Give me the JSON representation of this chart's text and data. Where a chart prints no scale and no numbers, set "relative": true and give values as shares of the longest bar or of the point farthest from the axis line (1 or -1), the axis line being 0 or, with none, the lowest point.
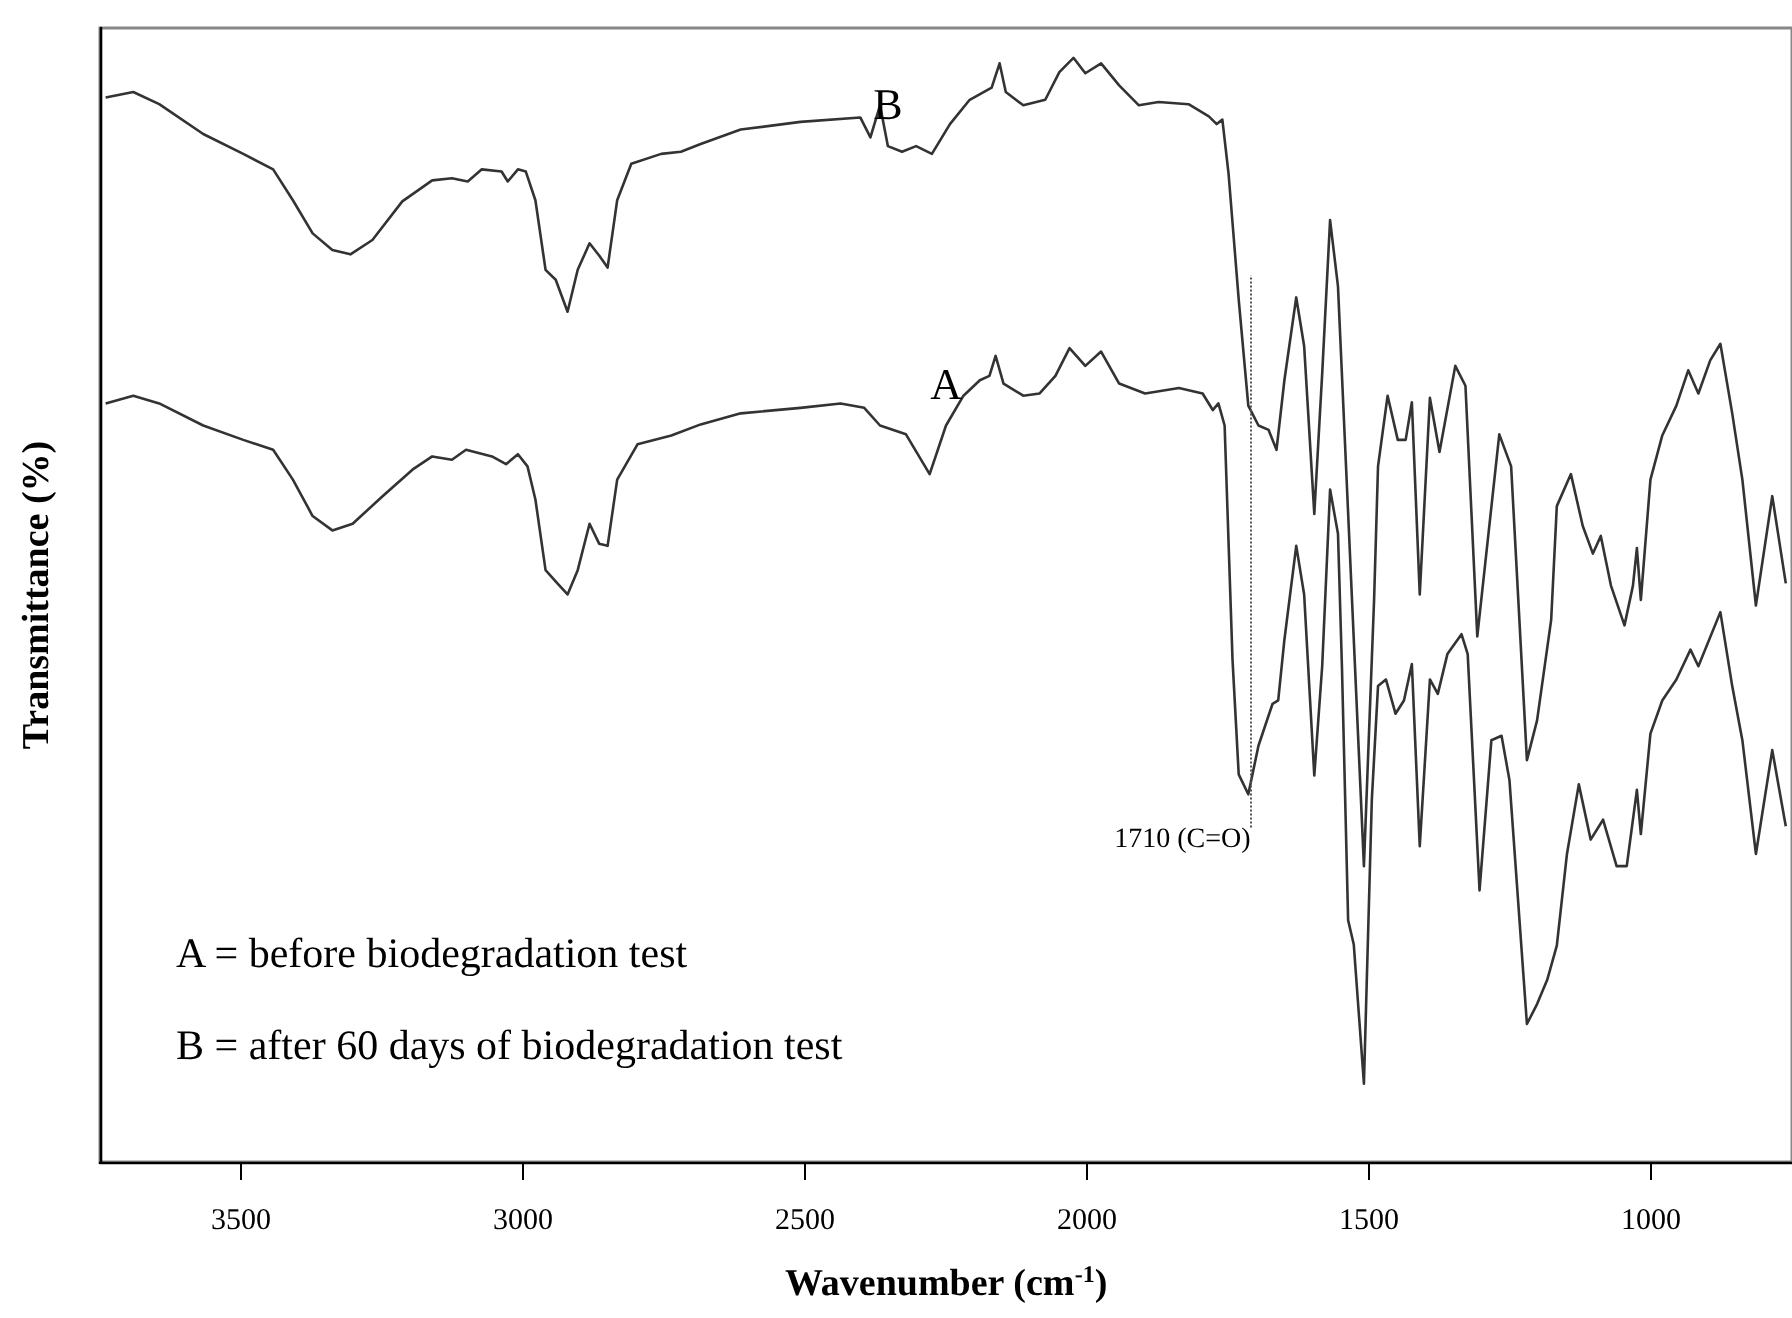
{
  "chart_data": {
    "type": "line",
    "relative": true,
    "xlabel": "Wavenumber (cm$^{-1}$)",
    "ylabel": "Transmittance (%)",
    "xlim": [
      3750,
      750
    ],
    "xticks": [
      3500,
      3000,
      2500,
      2000,
      1500,
      1000
    ],
    "tick_labels": "x",
    "annotations": [
      "A = before biodegradation test",
      "B = after 60 days of biodegradation test",
      {
        "text": "1710 (C=O)",
        "x": 1710,
        "y": 0.333
      }
    ],
    "series": [
      {
        "name": "B",
        "color": "#333333",
        "x": [
          3740,
          3691,
          3645,
          3567,
          3496,
          3443,
          3408,
          3373,
          3338,
          3306,
          3267,
          3214,
          3161,
          3126,
          3098,
          3073,
          3038,
          3027,
          3009,
          2995,
          2978,
          2960,
          2942,
          2921,
          2903,
          2882,
          2865,
          2850,
          2833,
          2808,
          2755,
          2720,
          2685,
          2614,
          2508,
          2402,
          2384,
          2367,
          2353,
          2328,
          2303,
          2275,
          2243,
          2208,
          2169,
          2155,
          2144,
          2113,
          2074,
          2049,
          2024,
          2003,
          1975,
          1943,
          1908,
          1873,
          1820,
          1784,
          1770,
          1760,
          1749,
          1731,
          1714,
          1696,
          1678,
          1664,
          1650,
          1629,
          1615,
          1597,
          1583,
          1569,
          1555,
          1509,
          1491,
          1484,
          1467,
          1449,
          1435,
          1424,
          1410,
          1392,
          1375,
          1347,
          1329,
          1308,
          1269,
          1248,
          1220,
          1202,
          1177,
          1167,
          1142,
          1121,
          1103,
          1089,
          1071,
          1047,
          1032,
          1025,
          1018,
          1001,
          980,
          955,
          934,
          916,
          895,
          877,
          856,
          838,
          814,
          785,
          761
        ],
        "values": [
          0.964,
          0.969,
          0.958,
          0.931,
          0.913,
          0.899,
          0.871,
          0.841,
          0.826,
          0.822,
          0.835,
          0.87,
          0.889,
          0.891,
          0.888,
          0.899,
          0.897,
          0.888,
          0.899,
          0.897,
          0.871,
          0.808,
          0.799,
          0.77,
          0.808,
          0.832,
          0.821,
          0.81,
          0.871,
          0.904,
          0.913,
          0.915,
          0.922,
          0.935,
          0.942,
          0.946,
          0.928,
          0.957,
          0.92,
          0.915,
          0.92,
          0.913,
          0.94,
          0.962,
          0.973,
          0.995,
          0.969,
          0.957,
          0.962,
          0.987,
          1.0,
          0.986,
          0.995,
          0.975,
          0.957,
          0.96,
          0.958,
          0.947,
          0.94,
          0.944,
          0.895,
          0.781,
          0.685,
          0.667,
          0.663,
          0.645,
          0.708,
          0.783,
          0.739,
          0.587,
          0.714,
          0.853,
          0.793,
          0.268,
          0.509,
          0.63,
          0.694,
          0.654,
          0.654,
          0.688,
          0.514,
          0.692,
          0.643,
          0.721,
          0.703,
          0.476,
          0.659,
          0.63,
          0.364,
          0.4,
          0.491,
          0.594,
          0.623,
          0.576,
          0.551,
          0.567,
          0.522,
          0.486,
          0.522,
          0.556,
          0.509,
          0.618,
          0.658,
          0.685,
          0.717,
          0.696,
          0.726,
          0.741,
          0.678,
          0.618,
          0.504,
          0.603,
          0.524
        ]
      },
      {
        "name": "A",
        "color": "#333333",
        "x": [
          3740,
          3691,
          3645,
          3567,
          3496,
          3443,
          3408,
          3373,
          3338,
          3302,
          3249,
          3196,
          3161,
          3126,
          3101,
          3055,
          3030,
          3009,
          2992,
          2978,
          2960,
          2939,
          2921,
          2903,
          2882,
          2865,
          2850,
          2833,
          2797,
          2737,
          2685,
          2614,
          2508,
          2437,
          2395,
          2367,
          2321,
          2279,
          2250,
          2219,
          2190,
          2173,
          2162,
          2148,
          2113,
          2084,
          2056,
          2031,
          2003,
          1975,
          1943,
          1897,
          1837,
          1795,
          1777,
          1767,
          1756,
          1742,
          1731,
          1714,
          1696,
          1671,
          1661,
          1650,
          1629,
          1615,
          1597,
          1583,
          1569,
          1555,
          1548,
          1537,
          1527,
          1509,
          1495,
          1484,
          1470,
          1453,
          1438,
          1424,
          1410,
          1392,
          1378,
          1361,
          1336,
          1325,
          1304,
          1283,
          1265,
          1251,
          1220,
          1202,
          1184,
          1167,
          1149,
          1128,
          1107,
          1085,
          1061,
          1043,
          1025,
          1018,
          1001,
          980,
          955,
          930,
          916,
          877,
          856,
          838,
          814,
          785,
          761
        ],
        "values": [
          0.687,
          0.694,
          0.687,
          0.667,
          0.654,
          0.645,
          0.618,
          0.585,
          0.572,
          0.578,
          0.603,
          0.627,
          0.639,
          0.636,
          0.645,
          0.639,
          0.632,
          0.641,
          0.63,
          0.6,
          0.536,
          0.524,
          0.514,
          0.536,
          0.578,
          0.56,
          0.558,
          0.618,
          0.65,
          0.658,
          0.668,
          0.678,
          0.683,
          0.687,
          0.683,
          0.667,
          0.659,
          0.623,
          0.667,
          0.694,
          0.708,
          0.712,
          0.73,
          0.705,
          0.694,
          0.696,
          0.712,
          0.737,
          0.721,
          0.734,
          0.705,
          0.696,
          0.701,
          0.696,
          0.681,
          0.687,
          0.667,
          0.455,
          0.351,
          0.333,
          0.377,
          0.415,
          0.418,
          0.473,
          0.558,
          0.514,
          0.35,
          0.449,
          0.609,
          0.569,
          0.449,
          0.219,
          0.197,
          0.071,
          0.328,
          0.431,
          0.437,
          0.406,
          0.418,
          0.451,
          0.286,
          0.437,
          0.424,
          0.46,
          0.478,
          0.46,
          0.246,
          0.382,
          0.386,
          0.346,
          0.125,
          0.143,
          0.165,
          0.196,
          0.279,
          0.342,
          0.292,
          0.31,
          0.268,
          0.268,
          0.337,
          0.297,
          0.388,
          0.418,
          0.437,
          0.464,
          0.449,
          0.498,
          0.431,
          0.382,
          0.279,
          0.373,
          0.304
        ]
      }
    ]
  }
}
